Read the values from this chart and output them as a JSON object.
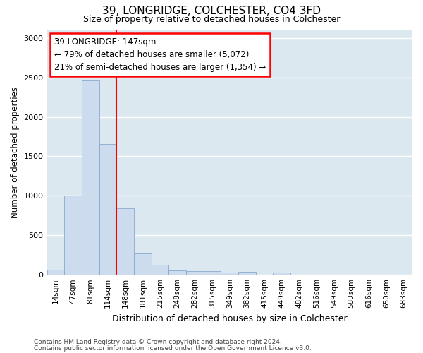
{
  "title": "39, LONGRIDGE, COLCHESTER, CO4 3FD",
  "subtitle": "Size of property relative to detached houses in Colchester",
  "xlabel": "Distribution of detached houses by size in Colchester",
  "ylabel": "Number of detached properties",
  "bar_color": "#ccdcee",
  "bar_edge_color": "#88aacc",
  "background_color": "#dce8f0",
  "grid_color": "#ffffff",
  "fig_background": "#ffffff",
  "categories": [
    "14sqm",
    "47sqm",
    "81sqm",
    "114sqm",
    "148sqm",
    "181sqm",
    "215sqm",
    "248sqm",
    "282sqm",
    "315sqm",
    "349sqm",
    "382sqm",
    "415sqm",
    "449sqm",
    "482sqm",
    "516sqm",
    "549sqm",
    "583sqm",
    "616sqm",
    "650sqm",
    "683sqm"
  ],
  "values": [
    60,
    1000,
    2460,
    1660,
    840,
    270,
    130,
    55,
    50,
    45,
    30,
    35,
    0,
    30,
    0,
    0,
    0,
    0,
    0,
    0,
    0
  ],
  "ylim": [
    0,
    3100
  ],
  "yticks": [
    0,
    500,
    1000,
    1500,
    2000,
    2500,
    3000
  ],
  "annotation_text": "39 LONGRIDGE: 147sqm\n← 79% of detached houses are smaller (5,072)\n21% of semi-detached houses are larger (1,354) →",
  "footer_line1": "Contains HM Land Registry data © Crown copyright and database right 2024.",
  "footer_line2": "Contains public sector information licensed under the Open Government Licence v3.0."
}
